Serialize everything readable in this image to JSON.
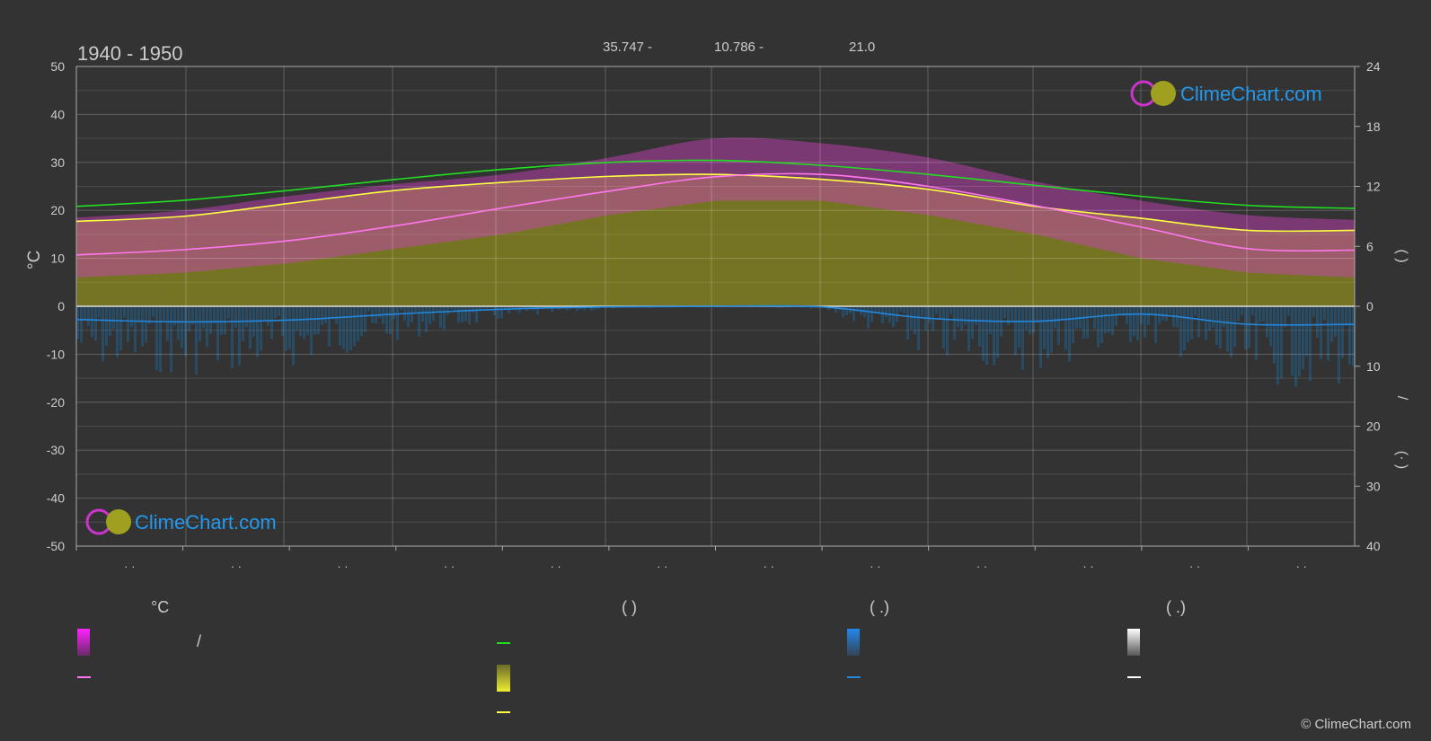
{
  "header": {
    "period": "1940 - 1950",
    "lat": "35.747 -",
    "lon": "10.786 -",
    "elevation": "21.0"
  },
  "axes": {
    "left_unit": "°C",
    "right_top_paren": "(   )",
    "right_bottom_paren": "(·   )",
    "right_slash": "/"
  },
  "watermark": {
    "text": "ClimeChart.com"
  },
  "copyright": "© ClimeChart.com",
  "legend": {
    "col1_header": "°C",
    "col1_slash": "/",
    "col2_header": "(           )",
    "col3_header": "(    .)",
    "col4_header": "(    .)"
  },
  "colors": {
    "background": "#333333",
    "sun_range": "#808020",
    "temp_range": "#d040c0",
    "daylight_line": "#22dd22",
    "sunshine_line": "#ffff44",
    "avg_temp_line": "#ff77ee",
    "precip_line": "#2288dd",
    "precip_bars": "#1f5f8f"
  },
  "chart_data": {
    "type": "area",
    "x_ticks": [
      "· ·",
      "· ·",
      "· ·",
      "· ·",
      "· ·",
      "· ·",
      "· ·",
      "· ·",
      "· ·",
      "· ·",
      "· ·",
      "· ·"
    ],
    "y_left": {
      "min": -50,
      "max": 50,
      "ticks": [
        50,
        40,
        30,
        20,
        10,
        0,
        -10,
        -20,
        -30,
        -40,
        -50
      ]
    },
    "y_right_top": {
      "min": 0,
      "max": 24,
      "ticks": [
        24,
        18,
        12,
        6,
        0
      ]
    },
    "y_right_bottom": {
      "min": 0,
      "max": 40,
      "ticks": [
        0,
        10,
        20,
        30,
        40
      ]
    },
    "grid": true,
    "months_x": [
      0,
      1,
      2,
      3,
      4,
      5,
      6,
      7,
      8,
      9,
      10,
      11,
      12
    ],
    "daylight_hours": [
      10.0,
      10.6,
      11.6,
      12.7,
      13.7,
      14.4,
      14.6,
      14.1,
      13.2,
      12.1,
      11.0,
      10.1,
      9.8
    ],
    "sunshine_hours": [
      8.5,
      9.0,
      10.3,
      11.6,
      12.4,
      13.0,
      13.2,
      12.7,
      11.7,
      10.0,
      8.8,
      7.6,
      7.6
    ],
    "avg_temp": [
      10.7,
      11.8,
      13.7,
      16.8,
      20.5,
      24.0,
      27.0,
      27.5,
      25.0,
      21.0,
      16.5,
      12.0,
      11.7
    ],
    "temp_max_band": [
      18.5,
      20,
      23,
      25.5,
      27.5,
      31,
      35,
      34,
      31,
      26,
      22,
      19,
      18
    ],
    "temp_min_band": [
      6,
      7,
      9,
      12,
      15,
      19,
      22,
      22,
      19,
      15,
      10,
      7,
      6
    ],
    "precip_mm": [
      2.2,
      2.6,
      2.3,
      1.3,
      0.5,
      0.1,
      0.0,
      0.1,
      2.0,
      2.5,
      1.3,
      3.0,
      3.0
    ]
  }
}
